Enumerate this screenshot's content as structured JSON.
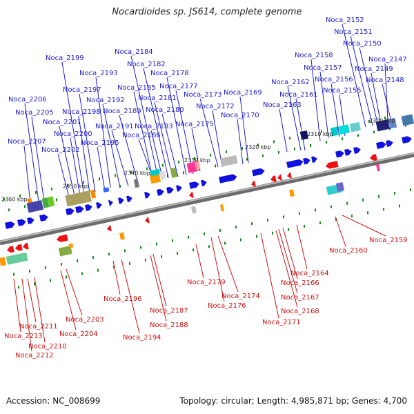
{
  "title": "Nocardioides sp. JS614, complete genome",
  "footer": {
    "accession": "Accession: NC_008699",
    "topology": "Topology: circular; Length: 4,985,871 bp; Genes: 4,700"
  },
  "colors": {
    "forward": "#1010e0",
    "reverse": "#ee1111",
    "backbone": "#888888",
    "label_forward": "#1a1acc",
    "label_reverse": "#cc1111",
    "ticks": "#118811"
  },
  "scale_ticks": [
    "2300 kbp",
    "2310 kbp",
    "2320 kbp",
    "2330 kbp",
    "2340 kbp",
    "2350 kbp",
    "2360 kbp"
  ],
  "forward_genes": [
    "Noca_2147",
    "Noca_2148",
    "Noca_2149",
    "Noca_2150",
    "Noca_2151",
    "Noca_2152",
    "Noca_2155",
    "Noca_2156",
    "Noca_2157",
    "Noca_2158",
    "Noca_2161",
    "Noca_2162",
    "Noca_2163",
    "Noca_2169",
    "Noca_2170",
    "Noca_2172",
    "Noca_2173",
    "Noca_2175",
    "Noca_2177",
    "Noca_2178",
    "Noca_2180",
    "Noca_2181",
    "Noca_2182",
    "Noca_2183",
    "Noca_2184",
    "Noca_2185",
    "Noca_2186",
    "Noca_2189",
    "Noca_2191",
    "Noca_2192",
    "Noca_2193",
    "Noca_2195",
    "Noca_2197",
    "Noca_2198",
    "Noca_2199",
    "Noca_2200",
    "Noca_2201",
    "Noca_2202",
    "Noca_2205",
    "Noca_2206",
    "Noca_2207"
  ],
  "reverse_genes": [
    "Noca_2159",
    "Noca_2160",
    "Noca_2164",
    "Noca_2166",
    "Noca_2167",
    "Noca_2168",
    "Noca_2171",
    "Noca_2174",
    "Noca_2176",
    "Noca_2179",
    "Noca_2187",
    "Noca_2188",
    "Noca_2194",
    "Noca_2196",
    "Noca_2203",
    "Noca_2204",
    "Noca_2210",
    "Noca_2211",
    "Noca_2212",
    "Noca_2213"
  ]
}
